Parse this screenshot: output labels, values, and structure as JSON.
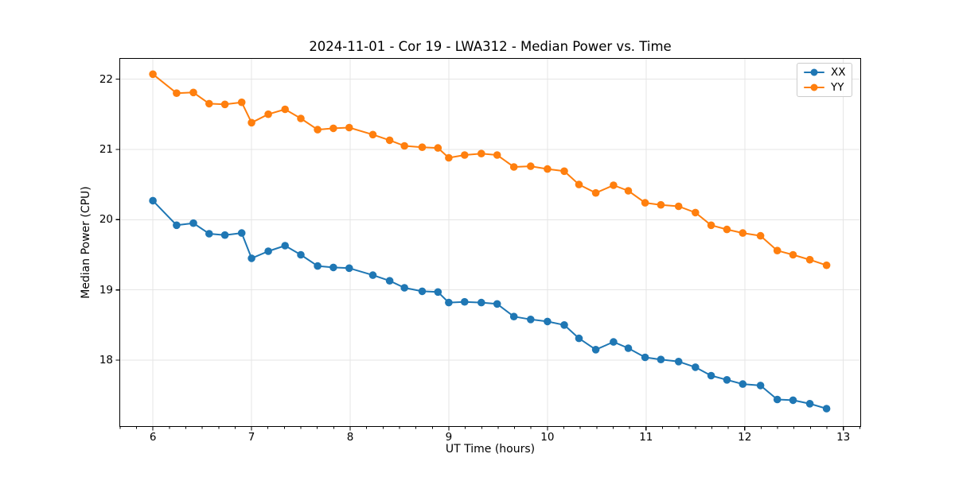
{
  "chart_data": {
    "type": "line",
    "title": "2024-11-01 - Cor 19 - LWA312 - Median Power vs. Time",
    "xlabel": "UT Time (hours)",
    "ylabel": "Median Power (CPU)",
    "xlim": [
      5.66,
      13.18
    ],
    "ylim": [
      17.05,
      22.3
    ],
    "x_ticks": [
      6,
      7,
      8,
      9,
      10,
      11,
      12,
      13
    ],
    "y_ticks": [
      18,
      19,
      20,
      21,
      22
    ],
    "x_minor_interval": 0.166667,
    "grid": true,
    "grid_color": "#e5e5e5",
    "spine_color": "#000000",
    "legend_position": "upper right",
    "marker": "circle",
    "x": [
      6.0,
      6.24,
      6.41,
      6.57,
      6.73,
      6.9,
      7.0,
      7.17,
      7.34,
      7.5,
      7.67,
      7.83,
      7.99,
      8.23,
      8.4,
      8.55,
      8.73,
      8.89,
      9.0,
      9.16,
      9.33,
      9.49,
      9.66,
      9.83,
      10.0,
      10.17,
      10.32,
      10.49,
      10.67,
      10.82,
      10.99,
      11.15,
      11.33,
      11.5,
      11.66,
      11.82,
      11.98,
      12.16,
      12.33,
      12.49,
      12.66,
      12.83
    ],
    "series": [
      {
        "name": "XX",
        "color": "#1f77b4",
        "values": [
          20.27,
          19.92,
          19.95,
          19.8,
          19.78,
          19.81,
          19.45,
          19.55,
          19.63,
          19.5,
          19.34,
          19.32,
          19.31,
          19.21,
          19.13,
          19.03,
          18.98,
          18.97,
          18.82,
          18.83,
          18.82,
          18.8,
          18.62,
          18.58,
          18.55,
          18.5,
          18.31,
          18.15,
          18.26,
          18.17,
          18.04,
          18.01,
          17.98,
          17.9,
          17.78,
          17.72,
          17.66,
          17.64,
          17.44,
          17.43,
          17.38,
          17.31
        ]
      },
      {
        "name": "YY",
        "color": "#ff7f0e",
        "values": [
          22.07,
          21.8,
          21.81,
          21.65,
          21.64,
          21.67,
          21.38,
          21.5,
          21.57,
          21.44,
          21.28,
          21.3,
          21.31,
          21.21,
          21.13,
          21.05,
          21.03,
          21.02,
          20.88,
          20.92,
          20.94,
          20.92,
          20.75,
          20.76,
          20.72,
          20.69,
          20.5,
          20.38,
          20.49,
          20.41,
          20.24,
          20.21,
          20.19,
          20.1,
          19.92,
          19.86,
          19.81,
          19.77,
          19.56,
          19.5,
          19.43,
          19.35
        ]
      }
    ]
  }
}
